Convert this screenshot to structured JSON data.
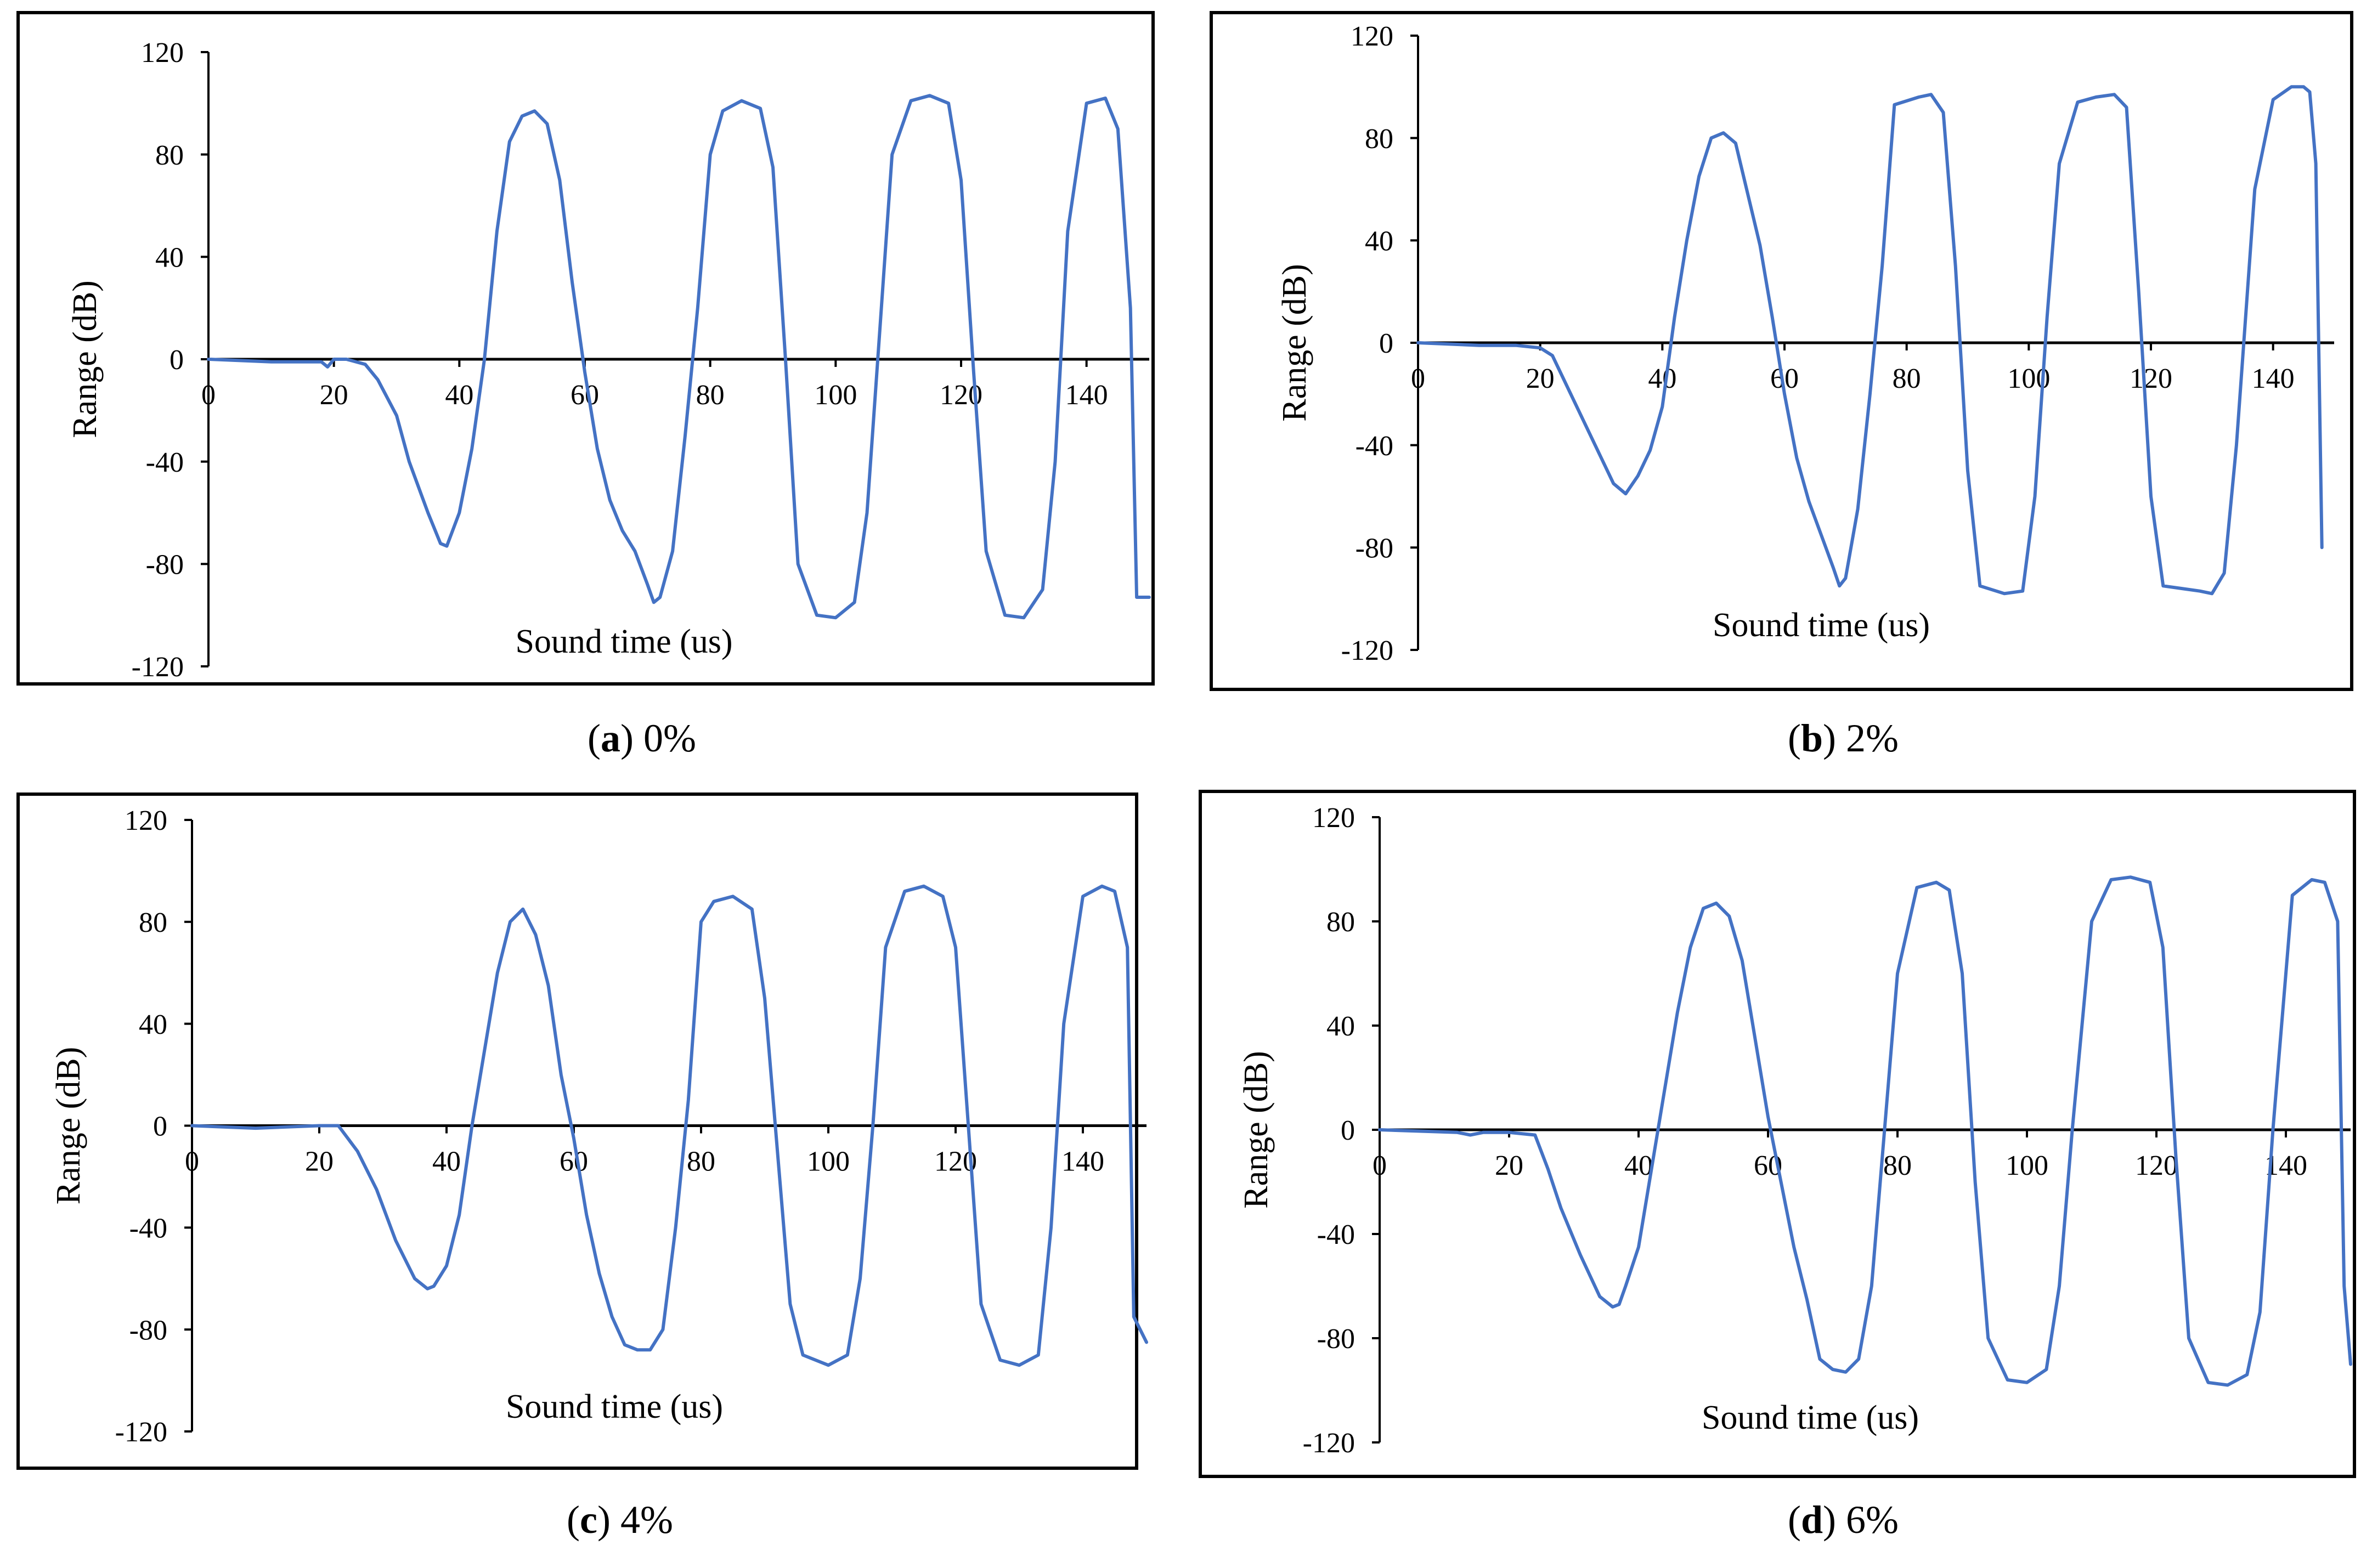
{
  "chart_data": [
    {
      "type": "line",
      "panel": "a",
      "caption_letter": "a",
      "caption_value": "0%",
      "title": "",
      "xlabel": "Sound time (us)",
      "ylabel": "Range (dB)",
      "xlim": [
        0,
        150
      ],
      "ylim": [
        -120,
        120
      ],
      "xticks": [
        "0",
        "20",
        "40",
        "60",
        "80",
        "100",
        "120",
        "140"
      ],
      "yticks": [
        "120",
        "80",
        "40",
        "0",
        "-40",
        "-80",
        "-120"
      ],
      "color": "#4472C4",
      "series": [
        {
          "name": "0%",
          "x": [
            0,
            10,
            18,
            19,
            20,
            22,
            25,
            27,
            30,
            32,
            35,
            37,
            38,
            40,
            42,
            44,
            46,
            48,
            50,
            52,
            54,
            56,
            58,
            60,
            62,
            64,
            66,
            68,
            70,
            71,
            72,
            74,
            76,
            78,
            80,
            82,
            85,
            88,
            90,
            92,
            94,
            97,
            100,
            103,
            105,
            107,
            109,
            112,
            115,
            118,
            120,
            122,
            124,
            127,
            130,
            133,
            135,
            137,
            140,
            143,
            145,
            147,
            148,
            150
          ],
          "y": [
            0,
            -1,
            -1,
            -3,
            0,
            0,
            -2,
            -8,
            -22,
            -40,
            -60,
            -72,
            -73,
            -60,
            -35,
            0,
            50,
            85,
            95,
            97,
            92,
            70,
            30,
            -5,
            -35,
            -55,
            -67,
            -75,
            -88,
            -95,
            -93,
            -75,
            -30,
            20,
            80,
            97,
            101,
            98,
            75,
            0,
            -80,
            -100,
            -101,
            -95,
            -60,
            10,
            80,
            101,
            103,
            100,
            70,
            -5,
            -75,
            -100,
            -101,
            -90,
            -40,
            50,
            100,
            102,
            90,
            20,
            -93,
            -93
          ]
        }
      ]
    },
    {
      "type": "line",
      "panel": "b",
      "caption_letter": "b",
      "caption_value": "2%",
      "title": "",
      "xlabel": "Sound time (us)",
      "ylabel": "Range (dB)",
      "xlim": [
        0,
        150
      ],
      "ylim": [
        -120,
        120
      ],
      "xticks": [
        "0",
        "20",
        "40",
        "60",
        "80",
        "100",
        "120",
        "140"
      ],
      "yticks": [
        "120",
        "80",
        "40",
        "0",
        "-40",
        "-80",
        "-120"
      ],
      "color": "#4472C4",
      "series": [
        {
          "name": "2%",
          "x": [
            0,
            10,
            16,
            20,
            22,
            25,
            28,
            30,
            32,
            34,
            36,
            38,
            40,
            42,
            44,
            46,
            48,
            50,
            52,
            54,
            56,
            58,
            60,
            62,
            64,
            66,
            68,
            69,
            70,
            72,
            74,
            76,
            78,
            82,
            84,
            86,
            88,
            90,
            92,
            96,
            99,
            101,
            103,
            105,
            108,
            111,
            114,
            116,
            118,
            120,
            122,
            125,
            128,
            130,
            132,
            134,
            137,
            140,
            143,
            145,
            146,
            147,
            148
          ],
          "y": [
            0,
            -1,
            -1,
            -2,
            -5,
            -20,
            -35,
            -45,
            -55,
            -59,
            -52,
            -42,
            -25,
            10,
            40,
            65,
            80,
            82,
            78,
            58,
            38,
            10,
            -20,
            -45,
            -62,
            -75,
            -88,
            -95,
            -92,
            -65,
            -20,
            30,
            93,
            96,
            97,
            90,
            30,
            -50,
            -95,
            -98,
            -97,
            -60,
            10,
            70,
            94,
            96,
            97,
            92,
            20,
            -60,
            -95,
            -96,
            -97,
            -98,
            -90,
            -40,
            60,
            95,
            100,
            100,
            98,
            70,
            -80
          ]
        }
      ]
    },
    {
      "type": "line",
      "panel": "c",
      "caption_letter": "c",
      "caption_value": "4%",
      "title": "",
      "xlabel": "Sound time (us)",
      "ylabel": "Range (dB)",
      "xlim": [
        0,
        150
      ],
      "ylim": [
        -120,
        120
      ],
      "xticks": [
        "0",
        "20",
        "40",
        "60",
        "80",
        "100",
        "120",
        "140"
      ],
      "yticks": [
        "120",
        "80",
        "40",
        "0",
        "-40",
        "-80",
        "-120"
      ],
      "color": "#4472C4",
      "series": [
        {
          "name": "4%",
          "x": [
            0,
            10,
            20,
            23,
            26,
            29,
            32,
            35,
            37,
            38,
            40,
            42,
            44,
            46,
            48,
            50,
            52,
            54,
            56,
            58,
            60,
            62,
            64,
            66,
            68,
            70,
            72,
            74,
            76,
            78,
            80,
            82,
            85,
            88,
            90,
            92,
            94,
            96,
            100,
            103,
            105,
            107,
            109,
            112,
            115,
            118,
            120,
            122,
            124,
            127,
            130,
            133,
            135,
            137,
            140,
            143,
            145,
            147,
            148,
            150
          ],
          "y": [
            0,
            -1,
            0,
            0,
            -10,
            -25,
            -45,
            -60,
            -64,
            -63,
            -55,
            -35,
            0,
            30,
            60,
            80,
            85,
            75,
            55,
            20,
            -5,
            -35,
            -58,
            -75,
            -86,
            -88,
            -88,
            -80,
            -40,
            10,
            80,
            88,
            90,
            85,
            50,
            -10,
            -70,
            -90,
            -94,
            -90,
            -60,
            0,
            70,
            92,
            94,
            90,
            70,
            0,
            -70,
            -92,
            -94,
            -90,
            -40,
            40,
            90,
            94,
            92,
            70,
            -75,
            -85
          ]
        }
      ]
    },
    {
      "type": "line",
      "panel": "d",
      "caption_letter": "d",
      "caption_value": "6%",
      "title": "",
      "xlabel": "Sound time (us)",
      "ylabel": "Range (dB)",
      "xlim": [
        0,
        150
      ],
      "ylim": [
        -120,
        120
      ],
      "xticks": [
        "0",
        "20",
        "40",
        "60",
        "80",
        "100",
        "120",
        "140"
      ],
      "yticks": [
        "120",
        "80",
        "40",
        "0",
        "-40",
        "-80",
        "-120"
      ],
      "color": "#4472C4",
      "series": [
        {
          "name": "6%",
          "x": [
            0,
            12,
            14,
            16,
            20,
            24,
            26,
            28,
            31,
            34,
            36,
            37,
            38,
            40,
            42,
            44,
            46,
            48,
            50,
            52,
            54,
            56,
            58,
            60,
            62,
            64,
            66,
            68,
            70,
            72,
            74,
            76,
            78,
            80,
            83,
            86,
            88,
            90,
            92,
            94,
            97,
            100,
            103,
            105,
            107,
            110,
            113,
            116,
            119,
            121,
            123,
            125,
            128,
            131,
            134,
            136,
            138,
            141,
            144,
            146,
            148,
            149,
            150
          ],
          "y": [
            0,
            -1,
            -2,
            -1,
            -1,
            -2,
            -15,
            -30,
            -48,
            -64,
            -68,
            -67,
            -60,
            -45,
            -15,
            15,
            45,
            70,
            85,
            87,
            82,
            65,
            35,
            5,
            -20,
            -45,
            -65,
            -88,
            -92,
            -93,
            -88,
            -60,
            0,
            60,
            93,
            95,
            92,
            60,
            -20,
            -80,
            -96,
            -97,
            -92,
            -60,
            0,
            80,
            96,
            97,
            95,
            70,
            -10,
            -80,
            -97,
            -98,
            -94,
            -70,
            0,
            90,
            96,
            95,
            80,
            -60,
            -90
          ]
        }
      ]
    }
  ]
}
